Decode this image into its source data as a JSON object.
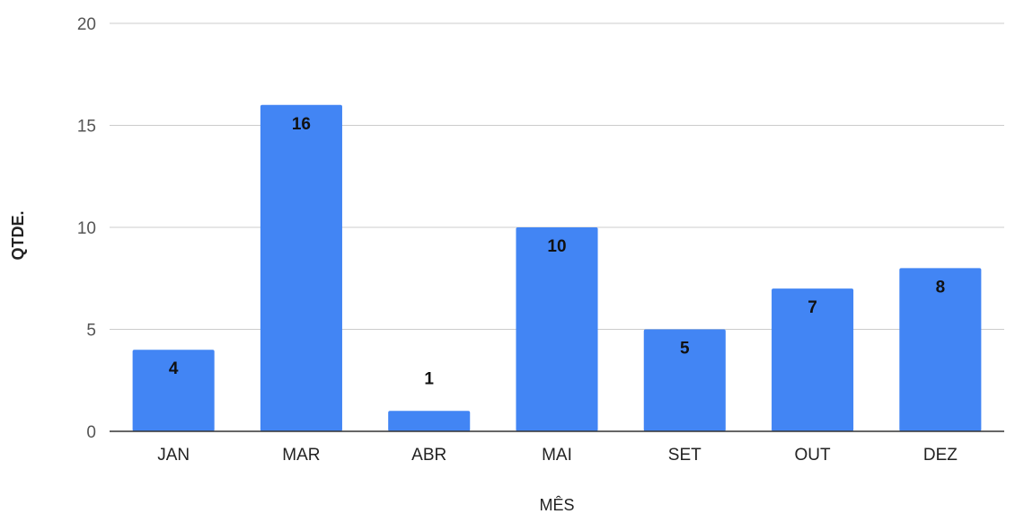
{
  "chart_data": {
    "type": "bar",
    "title": "",
    "xlabel": "MÊS",
    "ylabel": "QTDE.",
    "categories": [
      "JAN",
      "MAR",
      "ABR",
      "MAI",
      "SET",
      "OUT",
      "DEZ"
    ],
    "values": [
      4,
      16,
      1,
      10,
      5,
      7,
      8
    ],
    "ylim": [
      0,
      20
    ],
    "yticks": [
      0,
      5,
      10,
      15,
      20
    ],
    "grid": true,
    "legend": "none",
    "bar_color": "#4285f4",
    "data_labels": true
  }
}
